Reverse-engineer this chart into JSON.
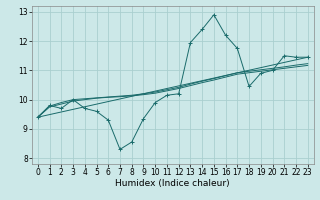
{
  "xlabel": "Humidex (Indice chaleur)",
  "bg_color": "#cce8e8",
  "grid_color": "#aacfcf",
  "line_color": "#1a6b6b",
  "xlim": [
    -0.5,
    23.5
  ],
  "ylim": [
    7.8,
    13.2
  ],
  "xticks": [
    0,
    1,
    2,
    3,
    4,
    5,
    6,
    7,
    8,
    9,
    10,
    11,
    12,
    13,
    14,
    15,
    16,
    17,
    18,
    19,
    20,
    21,
    22,
    23
  ],
  "yticks": [
    8,
    9,
    10,
    11,
    12,
    13
  ],
  "curve1_x": [
    0,
    1,
    2,
    3,
    4,
    5,
    6,
    7,
    8,
    9,
    10,
    11,
    12,
    13,
    14,
    15,
    16,
    17,
    18,
    19,
    20,
    21,
    22,
    23
  ],
  "curve1_y": [
    9.4,
    9.8,
    9.7,
    10.0,
    9.7,
    9.6,
    9.3,
    8.3,
    8.55,
    9.35,
    9.9,
    10.15,
    10.2,
    11.95,
    12.4,
    12.9,
    12.2,
    11.75,
    10.45,
    10.9,
    11.0,
    11.5,
    11.45,
    11.45
  ],
  "curve2_x": [
    0,
    23
  ],
  "curve2_y": [
    9.4,
    11.45
  ],
  "curve3_x": [
    0,
    1,
    2,
    3,
    4,
    5,
    6,
    7,
    8,
    9,
    10,
    11,
    12,
    13,
    14,
    15,
    16,
    17,
    18,
    19,
    20,
    21,
    22,
    23
  ],
  "curve3_y": [
    9.4,
    9.75,
    9.85,
    9.95,
    10.0,
    10.05,
    10.08,
    10.1,
    10.13,
    10.17,
    10.22,
    10.3,
    10.38,
    10.48,
    10.58,
    10.67,
    10.77,
    10.87,
    10.92,
    10.97,
    11.02,
    11.07,
    11.12,
    11.17
  ],
  "curve4_x": [
    0,
    1,
    2,
    3,
    4,
    5,
    6,
    7,
    8,
    9,
    10,
    11,
    12,
    13,
    14,
    15,
    16,
    17,
    18,
    19,
    20,
    21,
    22,
    23
  ],
  "curve4_y": [
    9.4,
    9.78,
    9.9,
    10.0,
    10.03,
    10.06,
    10.09,
    10.12,
    10.15,
    10.2,
    10.26,
    10.34,
    10.42,
    10.53,
    10.63,
    10.72,
    10.82,
    10.92,
    10.97,
    11.02,
    11.07,
    11.12,
    11.18,
    11.23
  ]
}
